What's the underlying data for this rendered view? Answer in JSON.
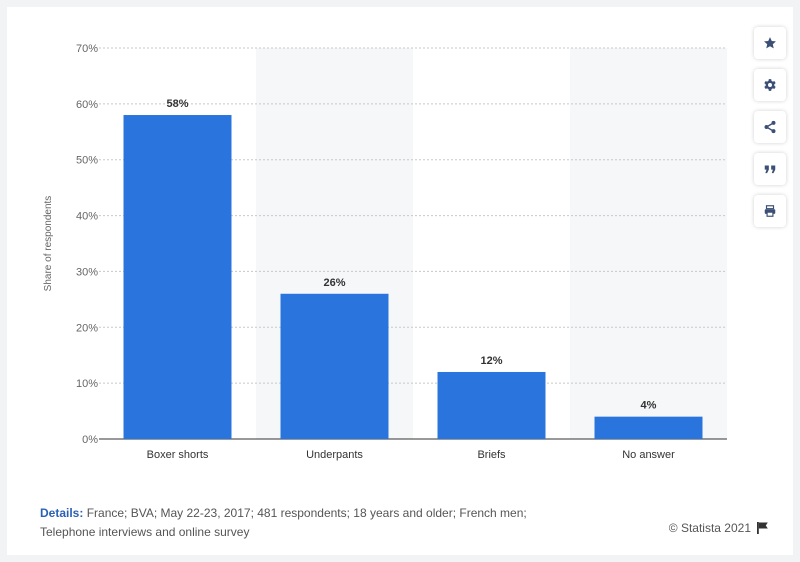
{
  "chart_data": {
    "type": "bar",
    "categories": [
      "Boxer shorts",
      "Underpants",
      "Briefs",
      "No answer"
    ],
    "values": [
      58,
      26,
      12,
      4
    ],
    "value_labels": [
      "58%",
      "26%",
      "12%",
      "4%"
    ],
    "title": "",
    "xlabel": "",
    "ylabel": "Share of respondents",
    "ylim": [
      0,
      70
    ],
    "yticks": [
      "0%",
      "10%",
      "20%",
      "30%",
      "40%",
      "50%",
      "60%",
      "70%"
    ],
    "grid": true,
    "bar_color": "#2a75dd",
    "band_color": "#f6f7f9"
  },
  "toolbar": {
    "icons": [
      "star-icon",
      "gear-icon",
      "share-icon",
      "quote-icon",
      "print-icon"
    ]
  },
  "footer": {
    "details_label": "Details:",
    "details_line1": "France; BVA; May 22-23, 2017; 481 respondents; 18 years and older; French men;",
    "details_line2": "Telephone interviews and online survey",
    "credit": "© Statista 2021"
  },
  "colors": {
    "accent": "#2b61b5",
    "icon": "#3c4f76"
  }
}
